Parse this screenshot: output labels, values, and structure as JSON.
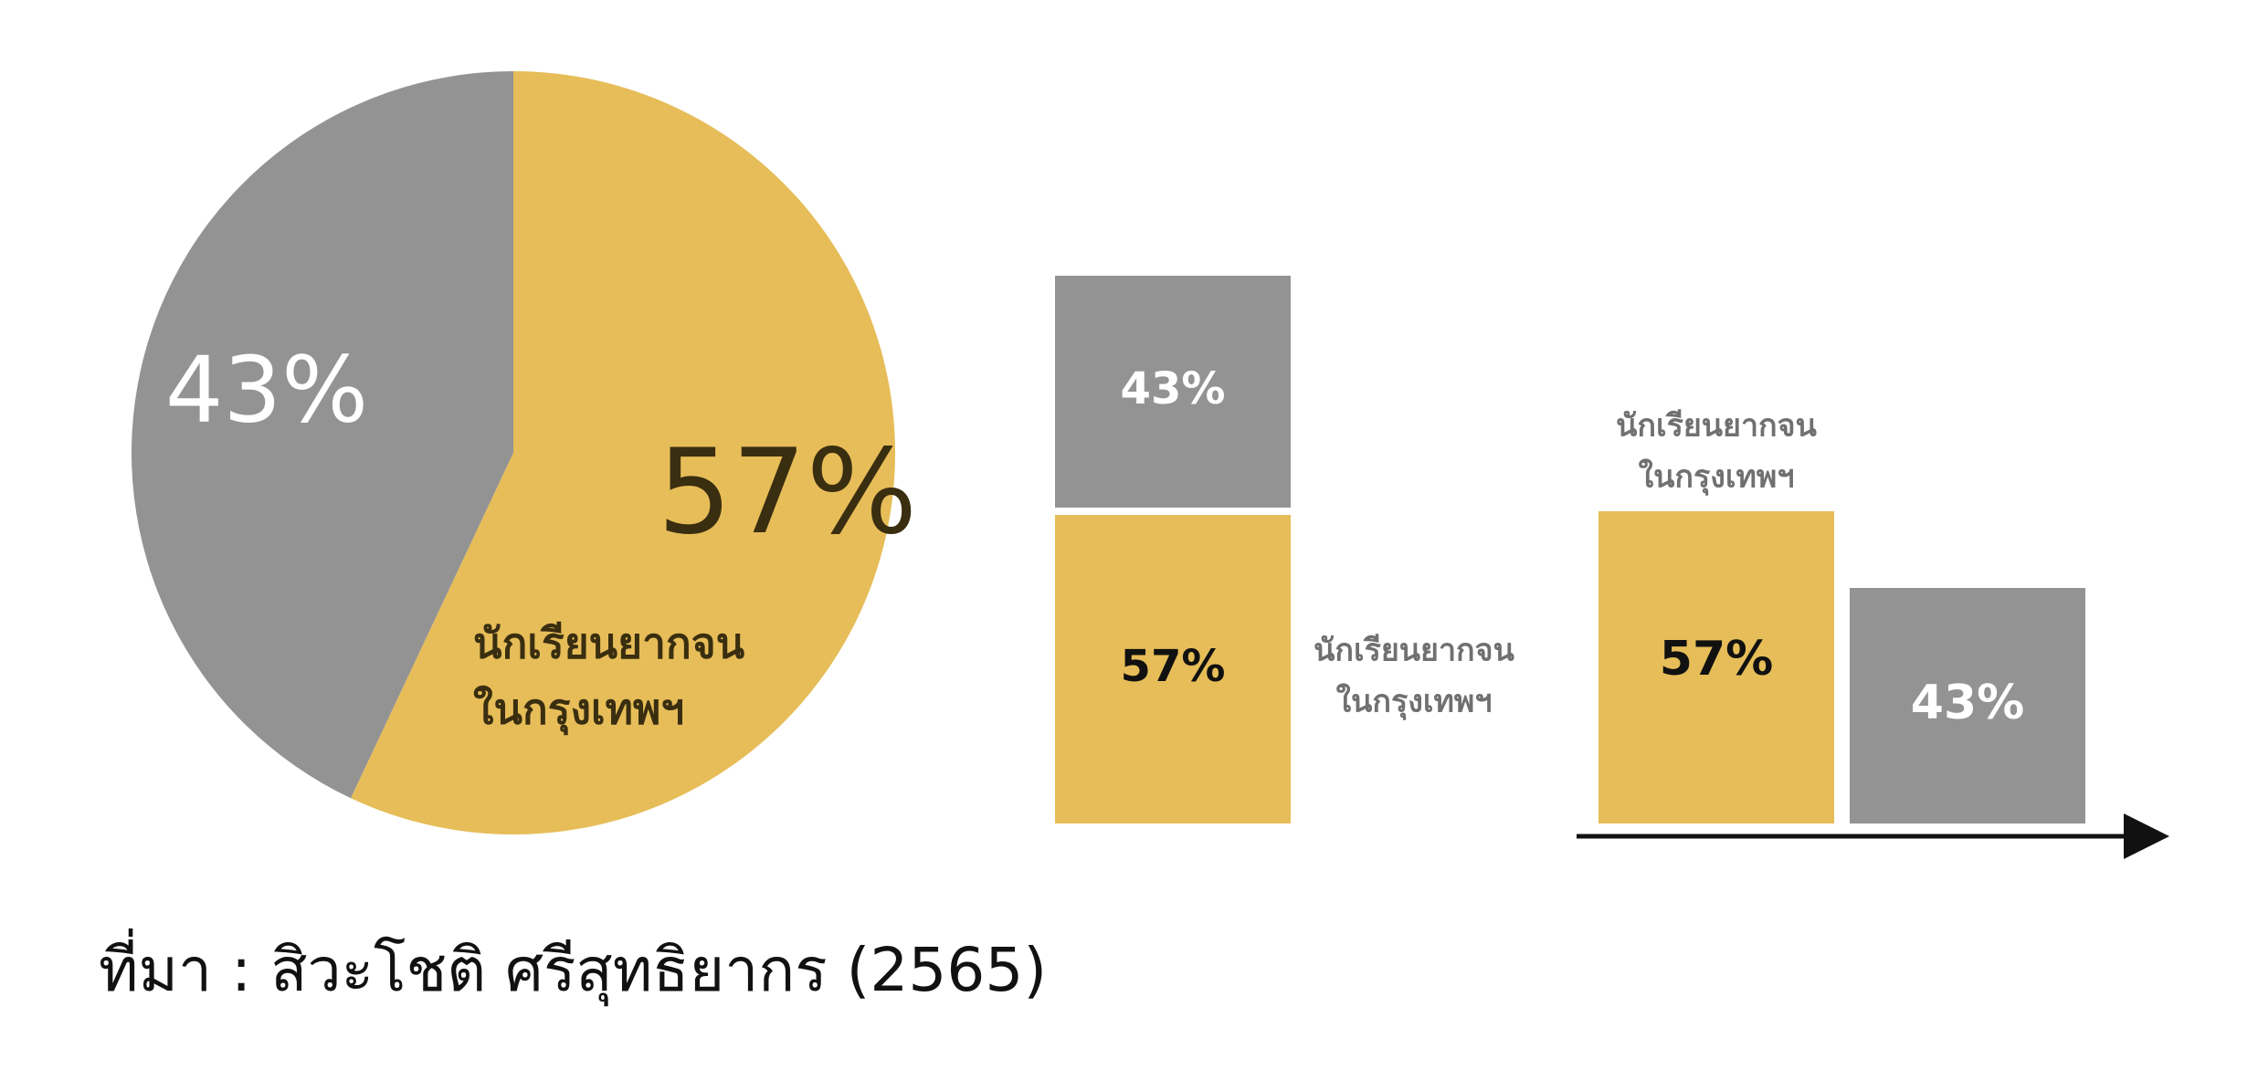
{
  "colors": {
    "poor_in_bangkok": "#E6BD58",
    "others": "#939393",
    "axis": "#111111",
    "dark_label": "#3A2E10",
    "white_label": "#FFFFFF"
  },
  "chart_data": [
    {
      "type": "pie",
      "slices": [
        {
          "label": "นักเรียนยากจน ในกรุงเทพฯ",
          "label_lines": [
            "นักเรียนยากจน",
            "ในกรุงเทพฯ"
          ],
          "value": 57,
          "value_label": "57%",
          "color": "#E6BD58"
        },
        {
          "label": "",
          "value": 43,
          "value_label": "43%",
          "color": "#939393"
        }
      ]
    },
    {
      "type": "bar",
      "stacked": true,
      "categories": [
        ""
      ],
      "series": [
        {
          "label_lines": [
            "นักเรียนยากจน",
            "ในกรุงเทพฯ"
          ],
          "values": [
            57
          ],
          "value_label": "57%",
          "color": "#E6BD58"
        },
        {
          "label_lines": [],
          "values": [
            43
          ],
          "value_label": "43%",
          "color": "#939393"
        }
      ],
      "ylim": [
        0,
        100
      ]
    },
    {
      "type": "bar",
      "categories": [
        "นักเรียนยากจน ในกรุงเทพฯ",
        ""
      ],
      "category_label_lines": [
        [
          "นักเรียนยากจน",
          "ในกรุงเทพฯ"
        ],
        []
      ],
      "values": [
        57,
        43
      ],
      "value_labels": [
        "57%",
        "43%"
      ],
      "colors": [
        "#E6BD58",
        "#939393"
      ],
      "ylim": [
        0,
        57
      ]
    }
  ],
  "source": "ที่มา : สิวะโชติ ศรีสุทธิยากร (2565)"
}
